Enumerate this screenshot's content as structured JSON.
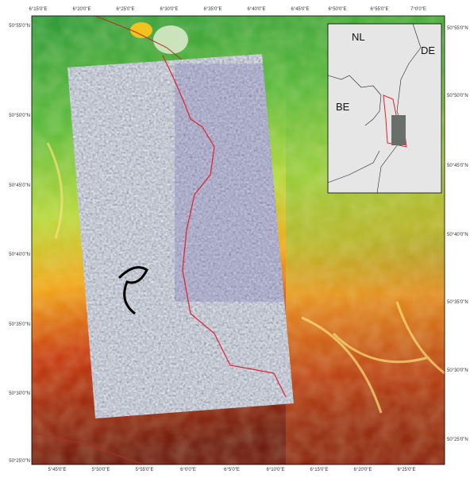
{
  "top_axis_labels": [
    "6°15'0\"E",
    "6°20'0\"E",
    "6°25'0\"E",
    "6°30'0\"E",
    "6°35'0\"E",
    "6°40'0\"E",
    "6°45'0\"E"
  ],
  "left_axis_labels": [
    "50°55'0\"N",
    "50°50'0\"N",
    "50°45'0\"N",
    "50°40'0\"N",
    "50°35'0\"N",
    "50°30'0\"N",
    "50°25'0\"N"
  ],
  "bottom_axis_labels": [
    "5°45'0\"E",
    "5°50'0\"E",
    "5°55'0\"E",
    "6°0'0\"E",
    "6°5'0\"E",
    "6°10'0\"E",
    "6°15'0\"E",
    "6°20'0\"E",
    "6°25'0\"E"
  ],
  "right_axis_labels": [
    "50°55'0\"N",
    "50°50'0\"N",
    "50°45'0\"N",
    "50°40'0\"N",
    "50°35'0\"N",
    "50°30'0\"N",
    "50°25'0\"N"
  ],
  "inset": {
    "top_labels": [
      "6°50'0\"E",
      "6°55'0\"E",
      "7°0'0\"E"
    ],
    "countries": [
      "NL",
      "DE",
      "BE"
    ]
  }
}
